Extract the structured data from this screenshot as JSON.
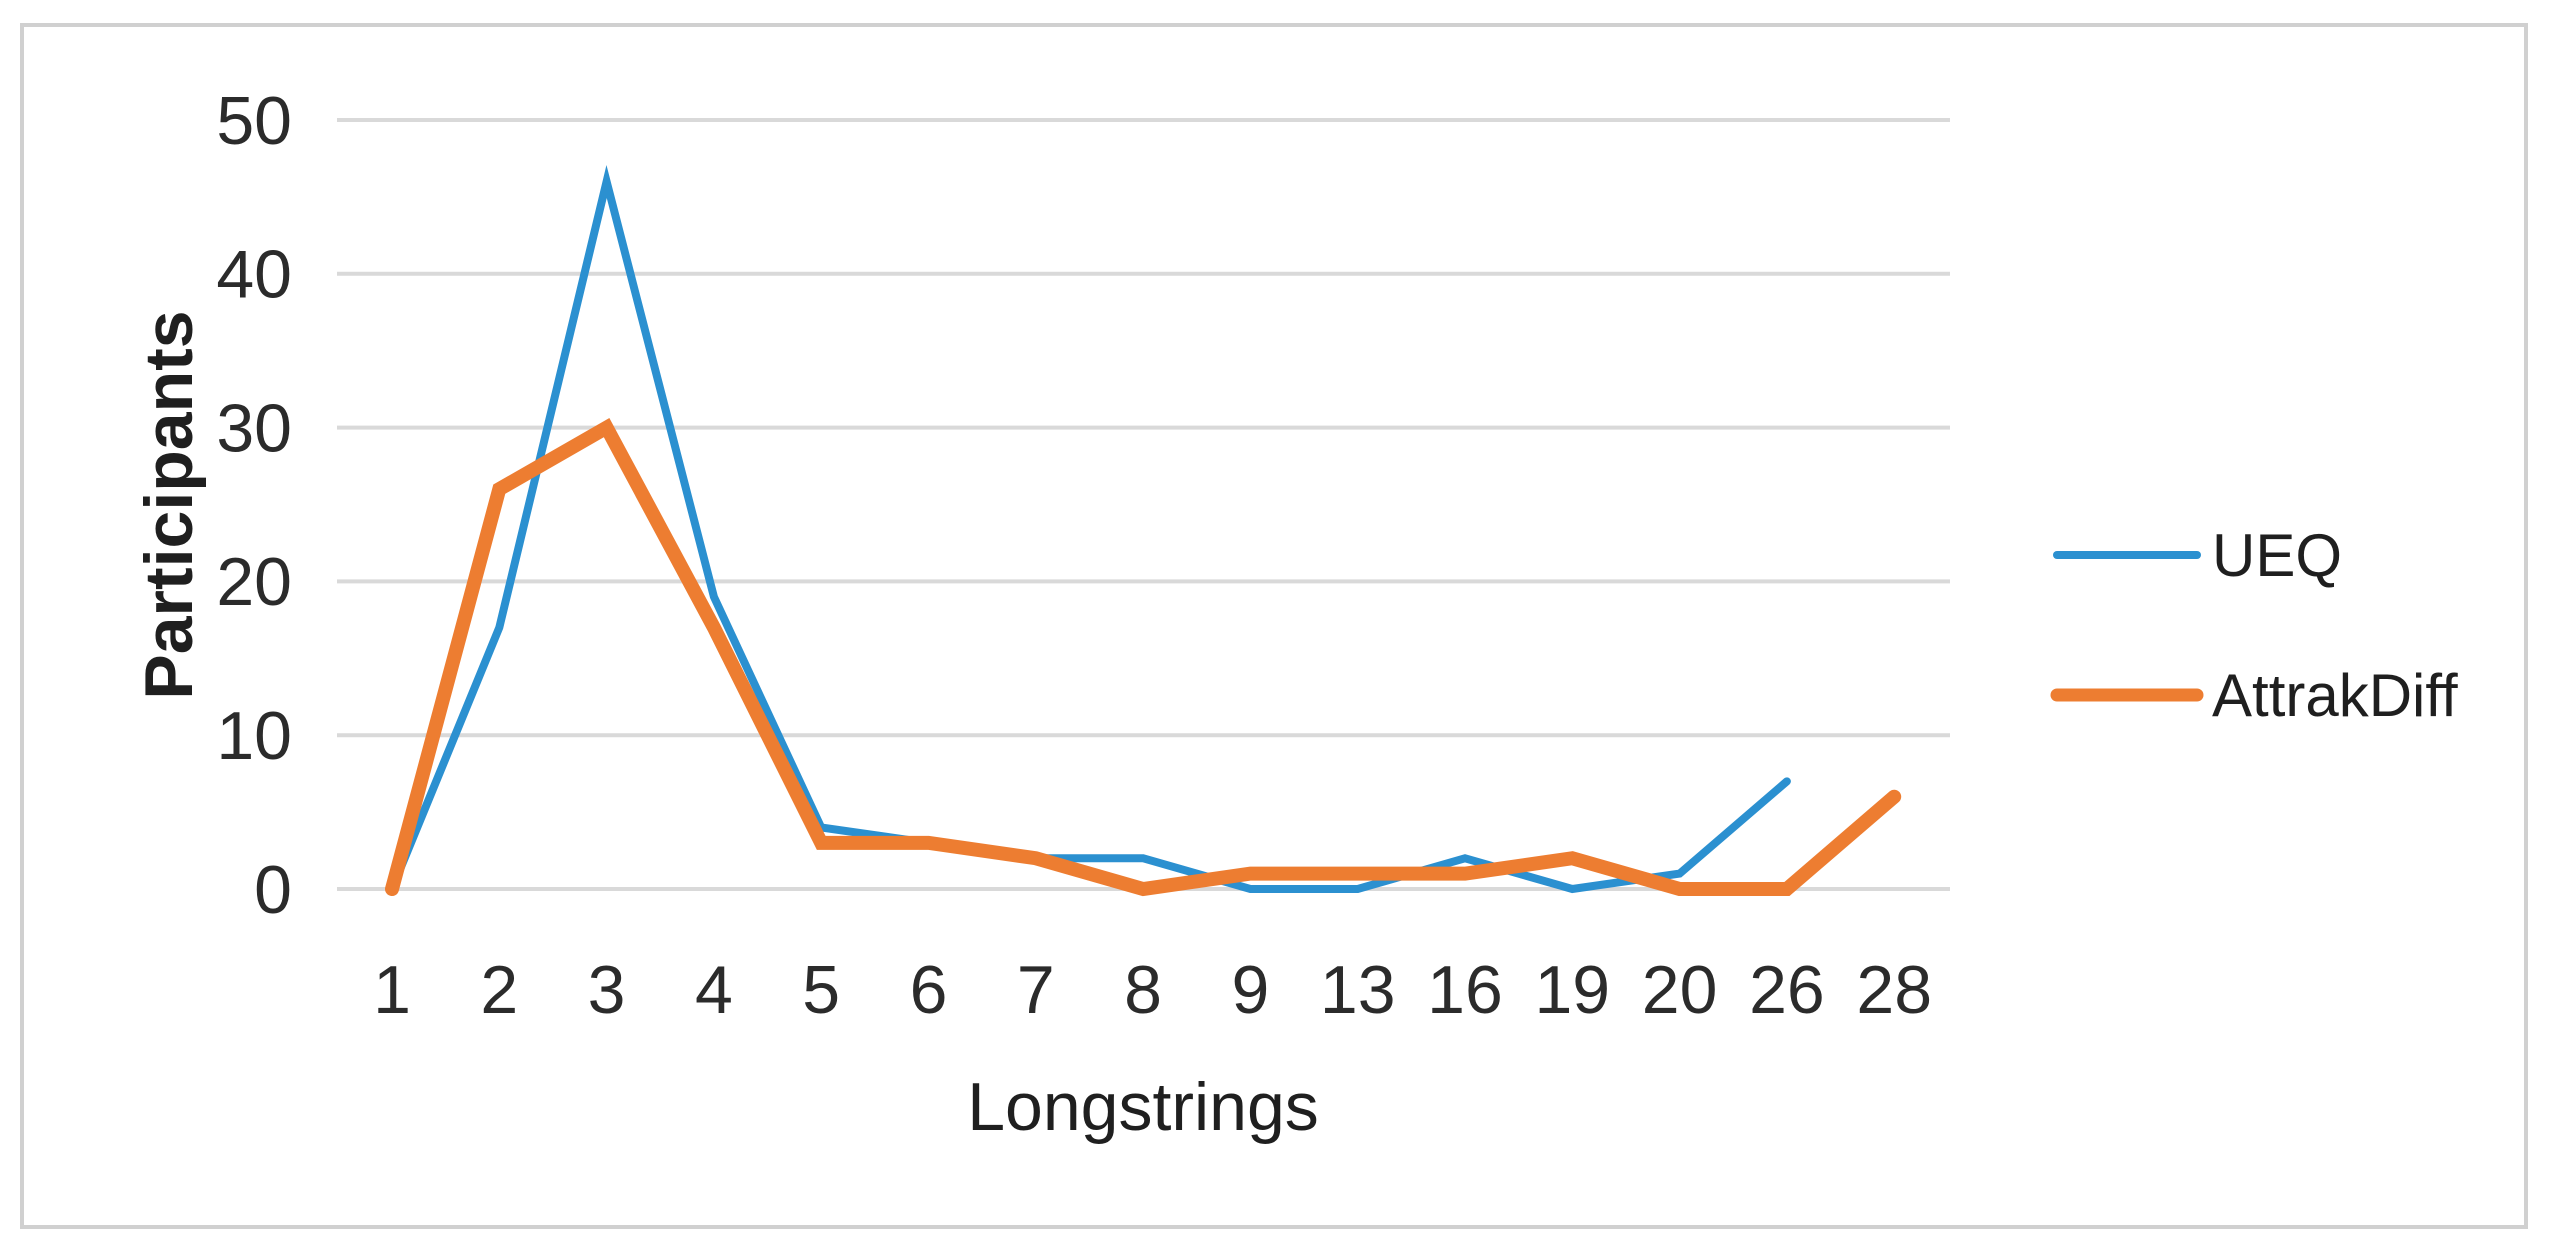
{
  "figure": {
    "background": "#ffffff",
    "border_color": "#d0d0d0"
  },
  "chart_data": {
    "type": "line",
    "title": "",
    "xlabel": "Longstrings",
    "ylabel": "Participants",
    "categories": [
      "1",
      "2",
      "3",
      "4",
      "5",
      "6",
      "7",
      "8",
      "9",
      "13",
      "16",
      "19",
      "20",
      "26",
      "28"
    ],
    "series": [
      {
        "name": "UEQ",
        "color": "#2b90d0",
        "stroke_width": 8,
        "values": [
          0,
          17,
          46,
          19,
          4,
          3,
          2,
          2,
          0,
          0,
          2,
          0,
          1,
          7,
          null
        ]
      },
      {
        "name": "AttrakDiff",
        "color": "#ed7d31",
        "stroke_width": 14,
        "values": [
          0,
          26,
          30,
          17,
          3,
          3,
          2,
          0,
          1,
          1,
          1,
          2,
          0,
          0,
          6
        ]
      }
    ],
    "y_ticks": [
      0,
      10,
      20,
      30,
      40,
      50
    ],
    "ylim": [
      0,
      50
    ],
    "grid": "horizontal",
    "gridline_color": "#d9d9d9",
    "legend_position": "right"
  }
}
